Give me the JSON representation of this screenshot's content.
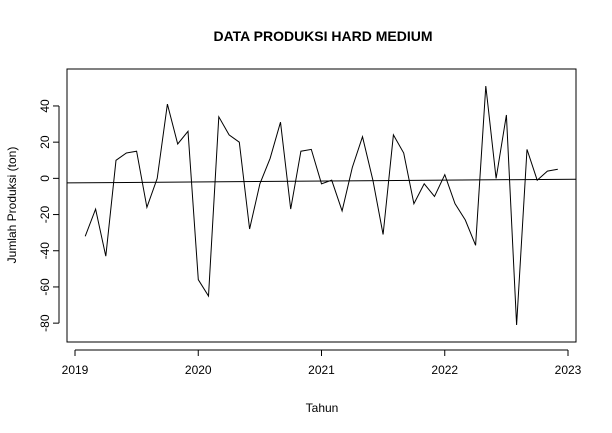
{
  "chart_data": {
    "type": "line",
    "title": "DATA PRODUKSI HARD MEDIUM",
    "xlabel": "Tahun",
    "ylabel": "Jumlah Produksi (ton)",
    "xlim": [
      2019.0,
      2023.0
    ],
    "ylim": [
      -86,
      56
    ],
    "x_ticks": [
      {
        "value": 2019,
        "label": "2019"
      },
      {
        "value": 2020,
        "label": "2020"
      },
      {
        "value": 2021,
        "label": "2021"
      },
      {
        "value": 2022,
        "label": "2022"
      },
      {
        "value": 2023,
        "label": "2023"
      }
    ],
    "y_ticks": [
      {
        "value": 40,
        "label": "40"
      },
      {
        "value": 20,
        "label": "20"
      },
      {
        "value": 0,
        "label": "0"
      },
      {
        "value": -20,
        "label": "-20"
      },
      {
        "value": -40,
        "label": "-40"
      },
      {
        "value": -60,
        "label": "-60"
      },
      {
        "value": -80,
        "label": "-80"
      }
    ],
    "grid": false,
    "legend": "none",
    "series": [
      {
        "type": "line",
        "x": [
          2019.083,
          2019.167,
          2019.25,
          2019.333,
          2019.417,
          2019.5,
          2019.583,
          2019.667,
          2019.75,
          2019.833,
          2019.917,
          2020.0,
          2020.083,
          2020.167,
          2020.25,
          2020.333,
          2020.417,
          2020.5,
          2020.583,
          2020.667,
          2020.75,
          2020.833,
          2020.917,
          2021.0,
          2021.083,
          2021.167,
          2021.25,
          2021.333,
          2021.417,
          2021.5,
          2021.583,
          2021.667,
          2021.75,
          2021.833,
          2021.917,
          2022.0,
          2022.083,
          2022.167,
          2022.25,
          2022.333,
          2022.417,
          2022.5,
          2022.583,
          2022.667,
          2022.75,
          2022.833,
          2022.917
        ],
        "values": [
          -32,
          -17,
          -43,
          10,
          14,
          15,
          -16,
          0,
          41,
          19,
          26,
          -56,
          -65,
          34,
          24,
          20,
          -28,
          -3,
          11,
          31,
          -17,
          15,
          16,
          -3,
          -1,
          -18,
          6,
          23,
          -1,
          -31,
          24,
          14,
          -14,
          -3,
          -10,
          2,
          -14,
          -23,
          -37,
          51,
          0,
          35,
          -81,
          16,
          -1,
          4,
          5
        ]
      },
      {
        "type": "trend",
        "x": [
          2019.0,
          2023.0
        ],
        "values": [
          -2.5,
          -0.5
        ]
      }
    ]
  }
}
